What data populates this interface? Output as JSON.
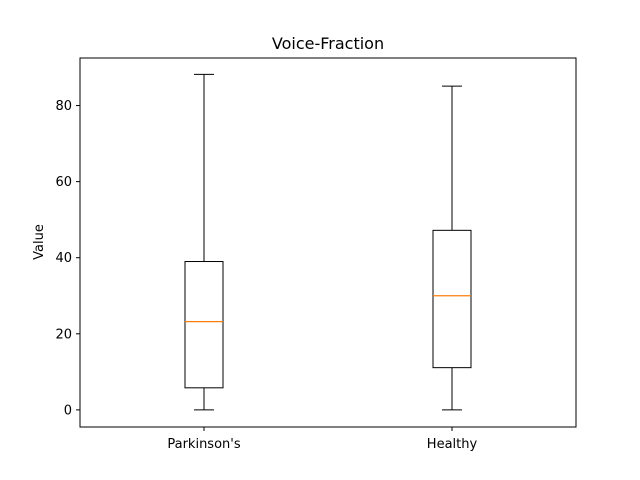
{
  "chart_data": {
    "type": "boxplot",
    "title": "Voice-Fraction",
    "xlabel": "",
    "ylabel": "Value",
    "ylim": [
      -4.5,
      92.5
    ],
    "yticks": [
      0,
      20,
      40,
      60,
      80
    ],
    "ytick_labels": [
      "0",
      "20",
      "40",
      "60",
      "80"
    ],
    "grid": false,
    "categories": [
      "Parkinson's",
      "Healthy"
    ],
    "boxes": [
      {
        "category": "Parkinson's",
        "whisker_low": 0,
        "q1": 5.8,
        "median": 23.2,
        "q3": 39,
        "whisker_high": 88.2
      },
      {
        "category": "Healthy",
        "whisker_low": 0,
        "q1": 11.1,
        "median": 30,
        "q3": 47.2,
        "whisker_high": 85.1
      }
    ],
    "colors": {
      "box": "#000000",
      "median": "#ff7f0e",
      "whisker": "#000000",
      "axes": "#000000"
    }
  }
}
